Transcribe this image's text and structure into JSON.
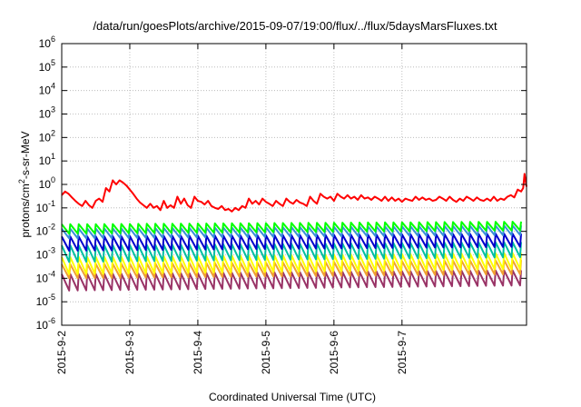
{
  "chart_data": {
    "type": "line",
    "title": "/data/run/goesPlots/archive/2015-09-07/19:00/flux/../flux/5daysMarsFluxes.txt",
    "xlabel": "Coordinated Universal Time (UTC)",
    "ylabel": "protons/cm2-s-sr-MeV",
    "ylabel_parts": {
      "prefix": "protons/cm",
      "sup": "2",
      "suffix": "-s-sr-MeV"
    },
    "yscale": "log",
    "ylim": [
      1e-06,
      1000000.0
    ],
    "xlim": [
      0,
      6.83
    ],
    "grid": true,
    "x_ticks": [
      {
        "x": 0,
        "label": "2015-9-2"
      },
      {
        "x": 1,
        "label": "2015-9-3"
      },
      {
        "x": 2,
        "label": "2015-9-4"
      },
      {
        "x": 3,
        "label": "2015-9-5"
      },
      {
        "x": 4,
        "label": "2015-9-6"
      },
      {
        "x": 5,
        "label": "2015-9-7"
      }
    ],
    "y_ticks": [
      {
        "value": 1e-06,
        "base": "10",
        "exp": "-6"
      },
      {
        "value": 1e-05,
        "base": "10",
        "exp": "-5"
      },
      {
        "value": 0.0001,
        "base": "10",
        "exp": "-4"
      },
      {
        "value": 0.001,
        "base": "10",
        "exp": "-3"
      },
      {
        "value": 0.01,
        "base": "10",
        "exp": "-2"
      },
      {
        "value": 0.1,
        "base": "10",
        "exp": "-1"
      },
      {
        "value": 1,
        "base": "10",
        "exp": "0"
      },
      {
        "value": 10,
        "base": "10",
        "exp": "1"
      },
      {
        "value": 100,
        "base": "10",
        "exp": "2"
      },
      {
        "value": 1000,
        "base": "10",
        "exp": "3"
      },
      {
        "value": 10000,
        "base": "10",
        "exp": "4"
      },
      {
        "value": 100000,
        "base": "10",
        "exp": "5"
      },
      {
        "value": 1000000,
        "base": "10",
        "exp": "6"
      }
    ],
    "series": [
      {
        "color": "#ff0000",
        "x": [
          0,
          0.05,
          0.1,
          0.15,
          0.2,
          0.25,
          0.3,
          0.35,
          0.4,
          0.45,
          0.5,
          0.55,
          0.6,
          0.65,
          0.7,
          0.75,
          0.8,
          0.85,
          0.9,
          0.95,
          1.0,
          1.05,
          1.1,
          1.15,
          1.2,
          1.25,
          1.3,
          1.35,
          1.4,
          1.45,
          1.5,
          1.55,
          1.6,
          1.65,
          1.7,
          1.75,
          1.8,
          1.85,
          1.9,
          1.95,
          2.0,
          2.05,
          2.1,
          2.15,
          2.2,
          2.25,
          2.3,
          2.35,
          2.4,
          2.45,
          2.5,
          2.55,
          2.6,
          2.65,
          2.7,
          2.75,
          2.8,
          2.85,
          2.9,
          2.95,
          3.0,
          3.05,
          3.1,
          3.15,
          3.2,
          3.25,
          3.3,
          3.35,
          3.4,
          3.45,
          3.5,
          3.55,
          3.6,
          3.65,
          3.7,
          3.75,
          3.8,
          3.85,
          3.9,
          3.95,
          4.0,
          4.05,
          4.1,
          4.15,
          4.2,
          4.25,
          4.3,
          4.35,
          4.4,
          4.45,
          4.5,
          4.55,
          4.6,
          4.65,
          4.7,
          4.75,
          4.8,
          4.85,
          4.9,
          4.95,
          5.0,
          5.05,
          5.1,
          5.15,
          5.2,
          5.25,
          5.3,
          5.35,
          5.4,
          5.45,
          5.5,
          5.55,
          5.6,
          5.65,
          5.7,
          5.75,
          5.8,
          5.85,
          5.9,
          5.95,
          6.0,
          6.05,
          6.1,
          6.15,
          6.2,
          6.25,
          6.3,
          6.35,
          6.4,
          6.45,
          6.5,
          6.55,
          6.6,
          6.65,
          6.7,
          6.75,
          6.78,
          6.8,
          6.83
        ],
        "y": [
          0.35,
          0.5,
          0.4,
          0.28,
          0.2,
          0.15,
          0.12,
          0.2,
          0.13,
          0.1,
          0.2,
          0.25,
          0.18,
          0.7,
          0.5,
          1.5,
          1.0,
          1.5,
          1.2,
          0.9,
          0.6,
          0.4,
          0.25,
          0.17,
          0.13,
          0.1,
          0.15,
          0.1,
          0.12,
          0.08,
          0.2,
          0.1,
          0.13,
          0.1,
          0.3,
          0.15,
          0.25,
          0.13,
          0.1,
          0.3,
          0.2,
          0.18,
          0.14,
          0.2,
          0.12,
          0.1,
          0.09,
          0.12,
          0.08,
          0.09,
          0.07,
          0.1,
          0.08,
          0.12,
          0.1,
          0.25,
          0.15,
          0.2,
          0.14,
          0.25,
          0.18,
          0.15,
          0.12,
          0.2,
          0.15,
          0.12,
          0.25,
          0.18,
          0.15,
          0.22,
          0.17,
          0.15,
          0.12,
          0.3,
          0.2,
          0.15,
          0.4,
          0.3,
          0.25,
          0.3,
          0.2,
          0.4,
          0.3,
          0.25,
          0.35,
          0.25,
          0.3,
          0.22,
          0.35,
          0.25,
          0.28,
          0.22,
          0.3,
          0.25,
          0.2,
          0.3,
          0.2,
          0.28,
          0.2,
          0.25,
          0.18,
          0.25,
          0.22,
          0.2,
          0.3,
          0.22,
          0.28,
          0.22,
          0.25,
          0.2,
          0.22,
          0.3,
          0.25,
          0.2,
          0.3,
          0.22,
          0.18,
          0.25,
          0.2,
          0.3,
          0.25,
          0.2,
          0.28,
          0.22,
          0.2,
          0.25,
          0.2,
          0.3,
          0.2,
          0.25,
          0.22,
          0.3,
          0.35,
          0.28,
          0.6,
          0.5,
          0.7,
          2.8,
          0.8
        ]
      },
      {
        "color": "#00ff00",
        "low": 0.008,
        "high": 0.02,
        "low_end": 0.011,
        "high_end": 0.026
      },
      {
        "color": "#3a8fd9",
        "low": 0.005,
        "high": 0.013,
        "low_end": 0.007,
        "high_end": 0.018
      },
      {
        "color": "#0000cc",
        "low": 0.0015,
        "high": 0.006,
        "low_end": 0.0022,
        "high_end": 0.008
      },
      {
        "color": "#00bfa0",
        "low": 0.0005,
        "high": 0.0025,
        "low_end": 0.0008,
        "high_end": 0.0035
      },
      {
        "color": "#ffff00",
        "low": 0.00015,
        "high": 0.0008,
        "low_end": 0.00025,
        "high_end": 0.0012
      },
      {
        "color": "#f0a030",
        "low": 0.0001,
        "high": 0.0004,
        "low_end": 0.00015,
        "high_end": 0.0006
      },
      {
        "color": "#993366",
        "low": 3e-05,
        "high": 0.00015,
        "low_end": 5e-05,
        "high_end": 0.00022
      }
    ],
    "sawtooth_period": 0.125
  }
}
